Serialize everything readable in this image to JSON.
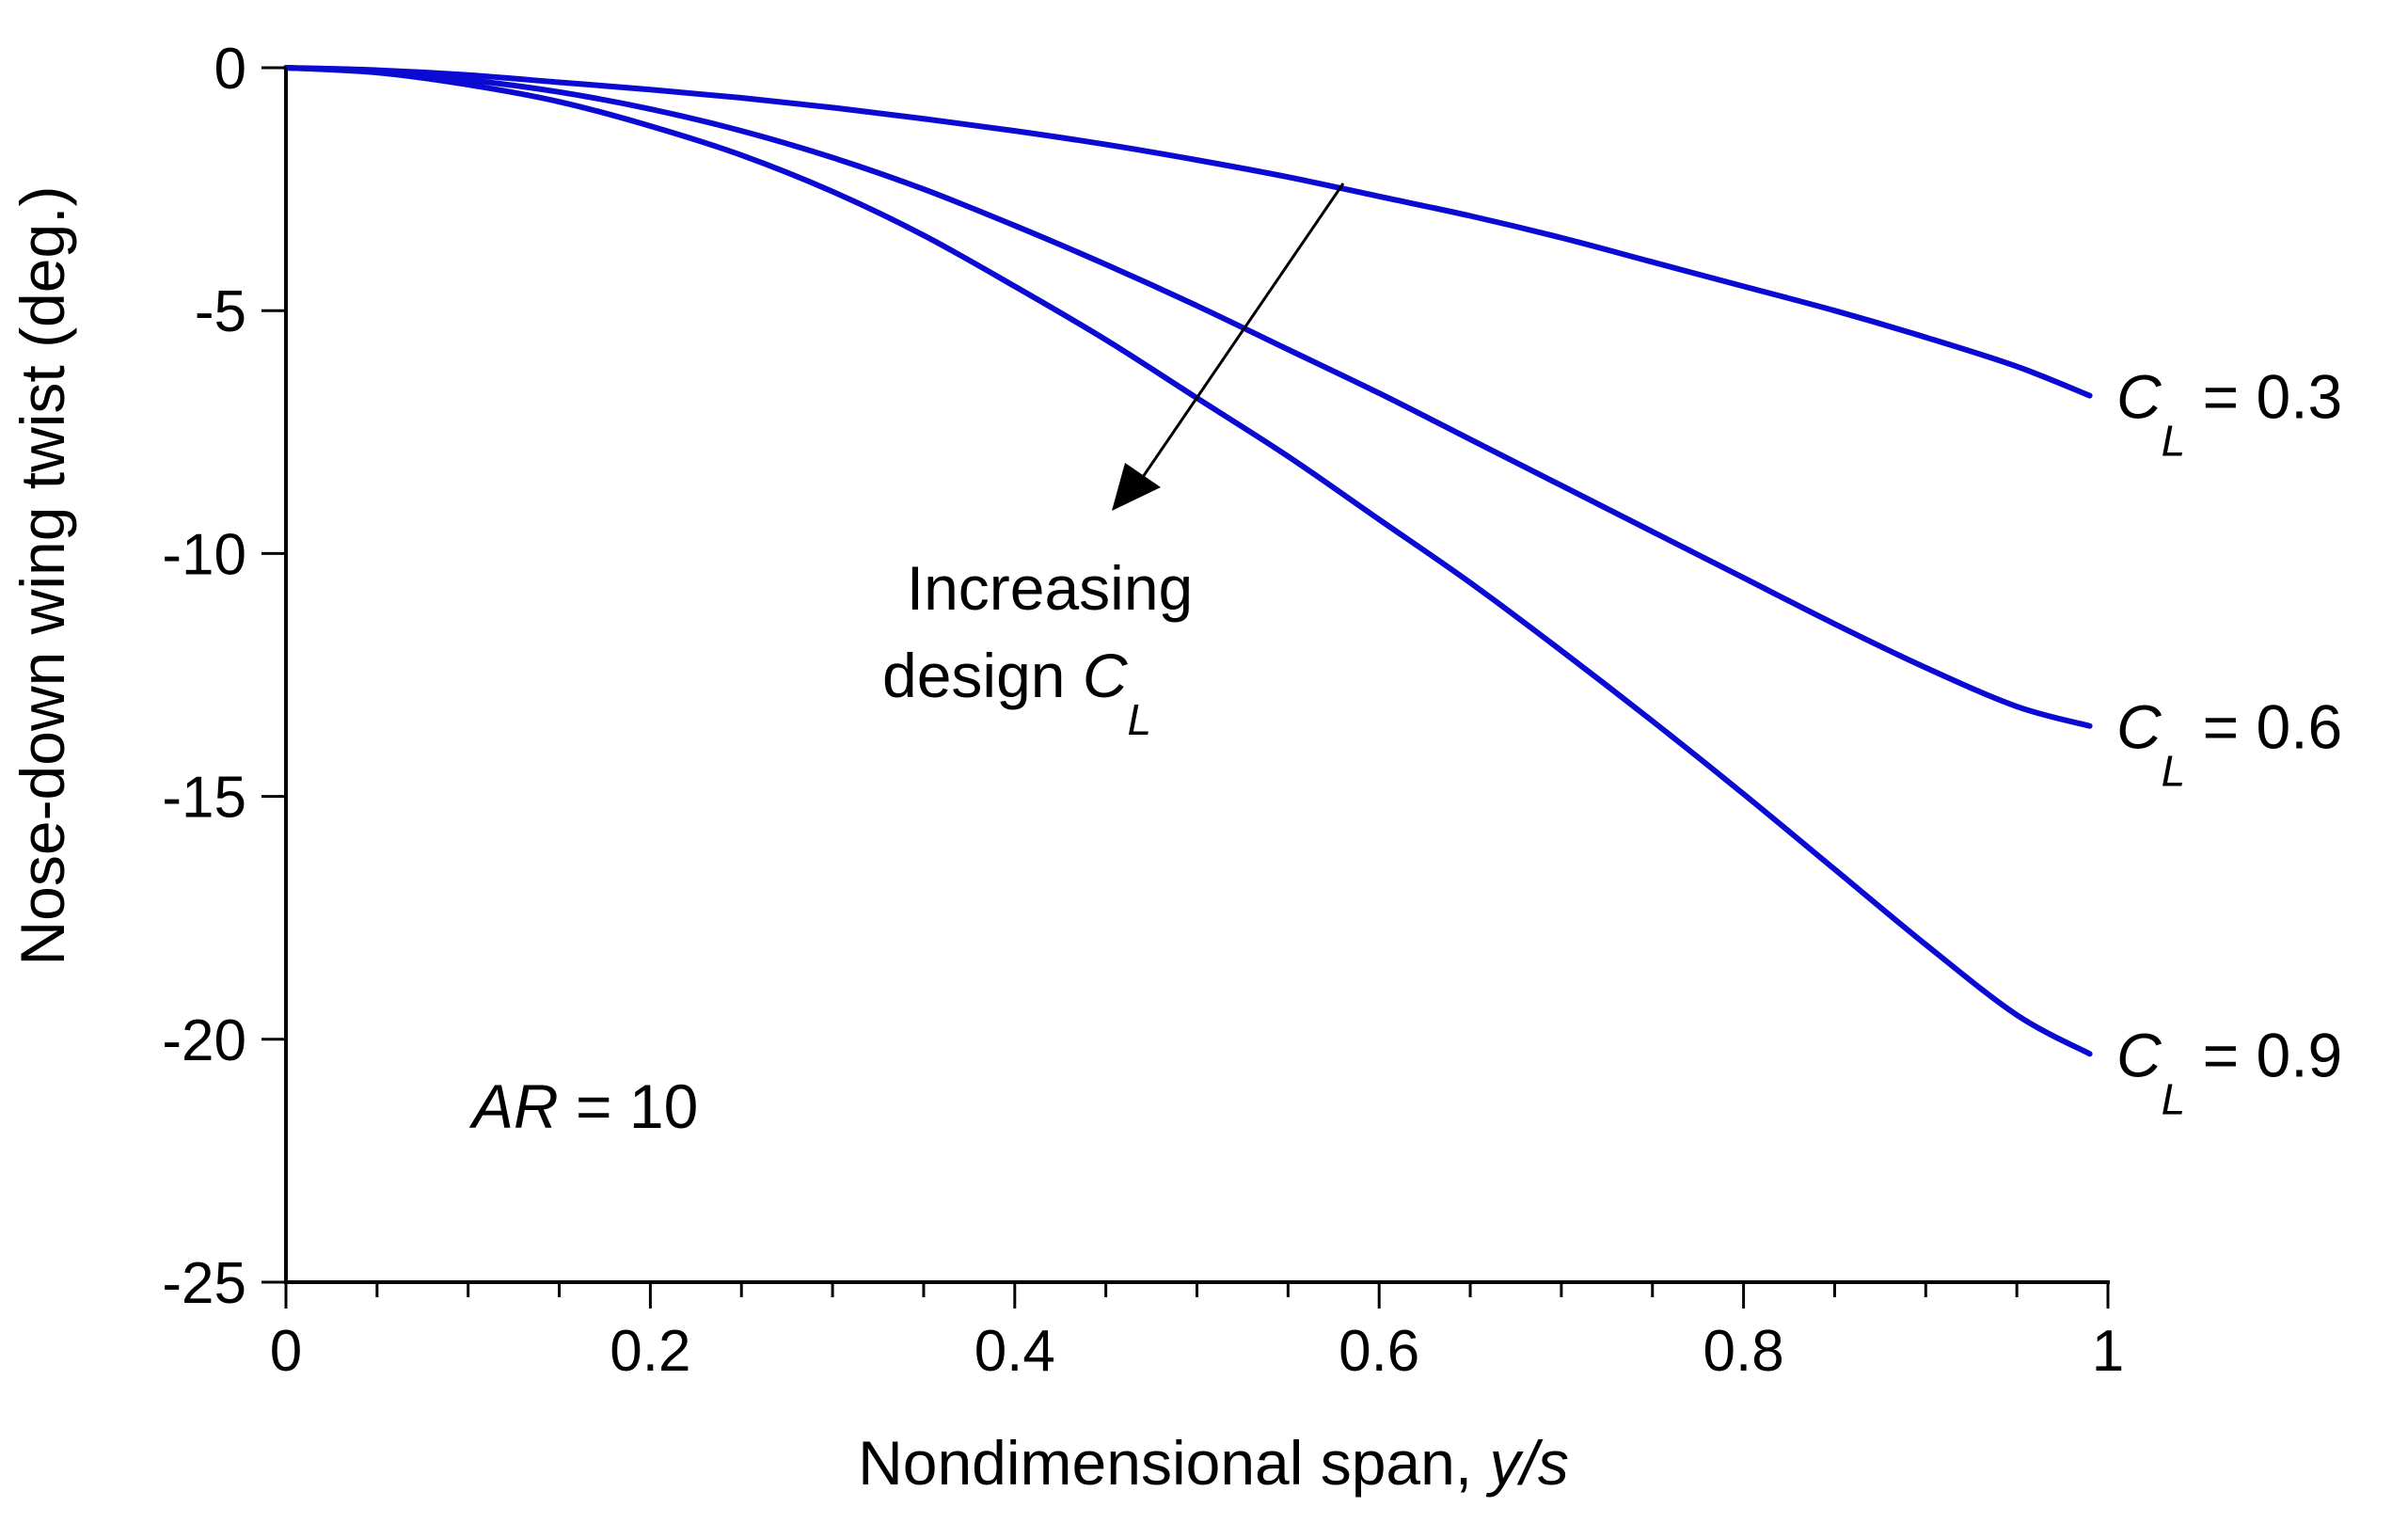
{
  "chart_data": {
    "type": "line",
    "xlabel": {
      "text": "Nondimensional span, ",
      "var": "y/s"
    },
    "ylabel": "Nose-down wing twist (deg.)",
    "xlim": [
      0,
      1
    ],
    "ylim": [
      -25,
      0
    ],
    "xticks": [
      0,
      0.2,
      0.4,
      0.6,
      0.8,
      1
    ],
    "xtick_labels": [
      "0",
      "0.2",
      "0.4",
      "0.6",
      "0.8",
      "1"
    ],
    "x_minor_step": 0.05,
    "yticks": [
      0,
      -5,
      -10,
      -15,
      -20,
      -25
    ],
    "ytick_labels": [
      "0",
      "-5",
      "-10",
      "-15",
      "-20",
      "-25"
    ],
    "grid": false,
    "line_color": "#0a0ad2",
    "series": [
      {
        "label_var": "C",
        "label_sub": "L",
        "label_rest": " = 0.3",
        "x": [
          0,
          0.05,
          0.1,
          0.15,
          0.2,
          0.25,
          0.3,
          0.35,
          0.4,
          0.45,
          0.5,
          0.55,
          0.6,
          0.65,
          0.7,
          0.75,
          0.8,
          0.85,
          0.9,
          0.95,
          0.99
        ],
        "y": [
          0,
          -0.05,
          -0.15,
          -0.3,
          -0.45,
          -0.62,
          -0.82,
          -1.05,
          -1.3,
          -1.58,
          -1.9,
          -2.25,
          -2.65,
          -3.05,
          -3.5,
          -4.0,
          -4.5,
          -5.0,
          -5.55,
          -6.15,
          -6.75
        ]
      },
      {
        "label_var": "C",
        "label_sub": "L",
        "label_rest": " = 0.6",
        "x": [
          0,
          0.05,
          0.1,
          0.15,
          0.2,
          0.25,
          0.3,
          0.35,
          0.4,
          0.45,
          0.5,
          0.55,
          0.6,
          0.65,
          0.7,
          0.75,
          0.8,
          0.85,
          0.9,
          0.95,
          0.99
        ],
        "y": [
          0,
          -0.08,
          -0.25,
          -0.5,
          -0.85,
          -1.3,
          -1.85,
          -2.5,
          -3.25,
          -4.05,
          -4.9,
          -5.8,
          -6.7,
          -7.65,
          -8.6,
          -9.55,
          -10.5,
          -11.45,
          -12.35,
          -13.15,
          -13.55
        ]
      },
      {
        "label_var": "C",
        "label_sub": "L",
        "label_rest": " = 0.9",
        "x": [
          0,
          0.05,
          0.1,
          0.15,
          0.2,
          0.25,
          0.3,
          0.35,
          0.4,
          0.45,
          0.5,
          0.55,
          0.6,
          0.65,
          0.7,
          0.75,
          0.8,
          0.85,
          0.9,
          0.95,
          0.99
        ],
        "y": [
          0,
          -0.1,
          -0.35,
          -0.7,
          -1.2,
          -1.8,
          -2.55,
          -3.45,
          -4.5,
          -5.6,
          -6.8,
          -8.0,
          -9.3,
          -10.6,
          -12.0,
          -13.45,
          -14.95,
          -16.5,
          -18.05,
          -19.5,
          -20.3
        ]
      }
    ],
    "annotations": {
      "arrow_line1": "Increasing",
      "arrow_line2_text": "design ",
      "arrow_line2_var": "C",
      "arrow_line2_sub": "L",
      "ar_var": "AR",
      "ar_rest": " = 10"
    }
  }
}
